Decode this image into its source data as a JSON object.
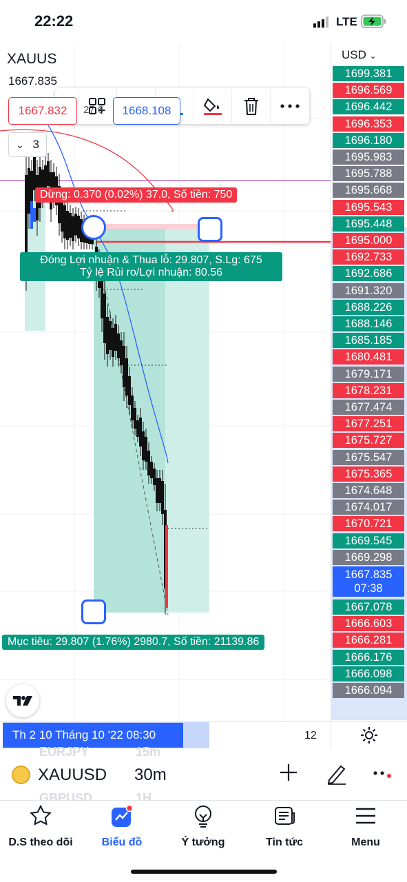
{
  "status_bar": {
    "time": "22:22",
    "network": "LTE"
  },
  "chart": {
    "symbol": "XAUUS",
    "last_price": "1667.835",
    "bid": "1667.832",
    "spread": "27.6",
    "ask": "1668.108",
    "collapse_count": "3",
    "stop_label": "Dừng: 0.370 (0.02%) 37.0, Số tiền: 750",
    "pnl_label_line1": "Đóng Lợi nhuận & Thua lỗ: 29.807, S.Lg: 675",
    "pnl_label_line2": "Tỷ lệ Rủi ro/Lợi nhuận: 80.56",
    "target_label": "Mục tiêu: 29.807 (1.76%) 2980.7, Số tiền: 21139.86",
    "colors": {
      "up": "#089981",
      "down": "#f23645",
      "accent": "#2962ff",
      "neutral": "#787b86"
    }
  },
  "toolbar": {
    "grip": "⋮⋮",
    "icons": [
      "add-template-icon",
      "text-icon",
      "fill-color-icon",
      "line-color-icon",
      "trash-icon",
      "more-icon"
    ]
  },
  "price_scale": {
    "currency": "USD",
    "tags": [
      {
        "price": "1699.381",
        "color": "green"
      },
      {
        "price": "1696.569",
        "color": "red"
      },
      {
        "price": "1696.442",
        "color": "green"
      },
      {
        "price": "1696.353",
        "color": "red"
      },
      {
        "price": "1696.180",
        "color": "green"
      },
      {
        "price": "1695.983",
        "color": "gray"
      },
      {
        "price": "1695.788",
        "color": "gray"
      },
      {
        "price": "1695.668",
        "color": "gray"
      },
      {
        "price": "1695.543",
        "color": "red"
      },
      {
        "price": "1695.448",
        "color": "green"
      },
      {
        "price": "1695.000",
        "color": "red"
      },
      {
        "price": "1692.733",
        "color": "red"
      },
      {
        "price": "1692.686",
        "color": "green"
      },
      {
        "price": "1691.320",
        "color": "gray"
      },
      {
        "price": "1688.226",
        "color": "green"
      },
      {
        "price": "1688.146",
        "color": "green"
      },
      {
        "price": "1685.185",
        "color": "green"
      },
      {
        "price": "1680.481",
        "color": "red"
      },
      {
        "price": "1679.171",
        "color": "gray"
      },
      {
        "price": "1678.231",
        "color": "red"
      },
      {
        "price": "1677.474",
        "color": "gray"
      },
      {
        "price": "1677.251",
        "color": "red"
      },
      {
        "price": "1675.727",
        "color": "red"
      },
      {
        "price": "1675.547",
        "color": "gray"
      },
      {
        "price": "1675.365",
        "color": "red"
      },
      {
        "price": "1674.648",
        "color": "gray"
      },
      {
        "price": "1674.017",
        "color": "gray"
      },
      {
        "price": "1670.721",
        "color": "red"
      },
      {
        "price": "1669.545",
        "color": "green"
      },
      {
        "price": "1669.298",
        "color": "gray"
      },
      {
        "price": "1667.835",
        "color": "blue",
        "countdown": "07:38"
      },
      {
        "price": "1667.078",
        "color": "green"
      },
      {
        "price": "1666.603",
        "color": "red"
      },
      {
        "price": "1666.281",
        "color": "red"
      },
      {
        "price": "1666.176",
        "color": "green"
      },
      {
        "price": "1666.098",
        "color": "green"
      },
      {
        "price": "1666.094",
        "color": "gray"
      }
    ]
  },
  "time_axis": {
    "date_label": "Th 2 10 Tháng 10 '22   08:30",
    "bars": "12"
  },
  "symbol_bar": {
    "symbol": "XAUUSD",
    "interval": "30m",
    "ghost_top": "EURJPY",
    "ghost_top_interval": "15m",
    "ghost_bottom": "GBPUSD",
    "ghost_bottom_interval": "1H"
  },
  "tabs": [
    {
      "label": "D.S theo dõi",
      "icon": "star-icon"
    },
    {
      "label": "Biểu đồ",
      "icon": "chart-icon",
      "active": true
    },
    {
      "label": "Ý tưởng",
      "icon": "lightbulb-icon"
    },
    {
      "label": "Tin tức",
      "icon": "news-icon"
    },
    {
      "label": "Menu",
      "icon": "hamburger-icon"
    }
  ]
}
